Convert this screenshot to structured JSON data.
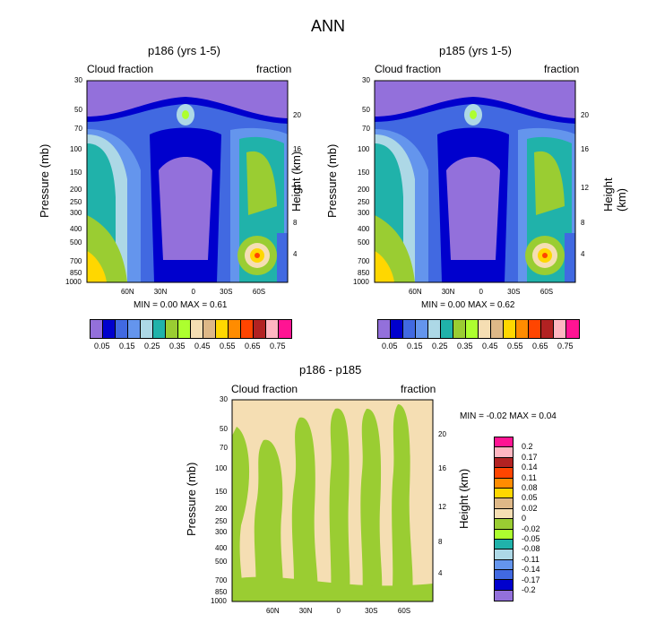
{
  "title": "ANN",
  "panels": [
    {
      "title": "p186 (yrs 1-5)",
      "left_label": "Cloud fraction",
      "right_label": "fraction",
      "min_max": "MIN =   0.00  MAX =   0.61"
    },
    {
      "title": "p185 (yrs 1-5)",
      "left_label": "Cloud fraction",
      "right_label": "fraction",
      "min_max": "MIN =   0.00  MAX =   0.62"
    },
    {
      "title": "p186 - p185",
      "left_label": "Cloud fraction",
      "right_label": "fraction",
      "min_max": "MIN =  -0.02  MAX =   0.04"
    }
  ],
  "axes": {
    "ylabel": "Pressure (mb)",
    "y2label": "Height (km)",
    "pressure_ticks": [
      "30",
      "50",
      "70",
      "100",
      "150",
      "200",
      "250",
      "300",
      "400",
      "500",
      "700",
      "850",
      "1000"
    ],
    "height_ticks": [
      "20",
      "16",
      "12",
      "8",
      "4"
    ],
    "lat_ticks": [
      "60N",
      "30N",
      "0",
      "30S",
      "60S"
    ]
  },
  "colorbar_top": {
    "colors": [
      "#9370db",
      "#0000cd",
      "#4169e1",
      "#6495ed",
      "#add8e6",
      "#20b2aa",
      "#9acd32",
      "#adff2f",
      "#f5deb3",
      "#deb887",
      "#ffd700",
      "#ff8c00",
      "#ff4500",
      "#b22222",
      "#ffb6c1",
      "#ff1493"
    ],
    "labels": [
      "0.05",
      "0.15",
      "0.25",
      "0.35",
      "0.45",
      "0.55",
      "0.65",
      "0.75"
    ]
  },
  "colorbar_diff": {
    "colors": [
      "#ff1493",
      "#ffb6c1",
      "#b22222",
      "#ff4500",
      "#ff8c00",
      "#ffd700",
      "#deb887",
      "#f5deb3",
      "#9acd32",
      "#adff2f",
      "#20b2aa",
      "#add8e6",
      "#6495ed",
      "#4169e1",
      "#0000cd",
      "#9370db"
    ],
    "labels": [
      "0.2",
      "0.17",
      "0.14",
      "0.11",
      "0.08",
      "0.05",
      "0.02",
      "0",
      "-0.02",
      "-0.05",
      "-0.08",
      "-0.11",
      "-0.14",
      "-0.17",
      "-0.2"
    ]
  },
  "chart_data": [
    {
      "type": "heatmap",
      "title": "p186 (yrs 1-5)",
      "xlabel": "",
      "ylabel": "Pressure (mb)",
      "y2label": "Height (km)",
      "x_ticks": [
        "60N",
        "30N",
        "0",
        "30S",
        "60S"
      ],
      "y_ticks": [
        "30",
        "50",
        "70",
        "100",
        "150",
        "200",
        "250",
        "300",
        "400",
        "500",
        "700",
        "850",
        "1000"
      ],
      "min": 0.0,
      "max": 0.61
    },
    {
      "type": "heatmap",
      "title": "p185 (yrs 1-5)",
      "xlabel": "",
      "ylabel": "Pressure (mb)",
      "y2label": "Height (km)",
      "x_ticks": [
        "60N",
        "30N",
        "0",
        "30S",
        "60S"
      ],
      "y_ticks": [
        "30",
        "50",
        "70",
        "100",
        "150",
        "200",
        "250",
        "300",
        "400",
        "500",
        "700",
        "850",
        "1000"
      ],
      "min": 0.0,
      "max": 0.62
    },
    {
      "type": "heatmap",
      "title": "p186 - p185",
      "xlabel": "",
      "ylabel": "Pressure (mb)",
      "y2label": "Height (km)",
      "x_ticks": [
        "60N",
        "30N",
        "0",
        "30S",
        "60S"
      ],
      "y_ticks": [
        "30",
        "50",
        "70",
        "100",
        "150",
        "200",
        "250",
        "300",
        "400",
        "500",
        "700",
        "850",
        "1000"
      ],
      "min": -0.02,
      "max": 0.04
    }
  ]
}
